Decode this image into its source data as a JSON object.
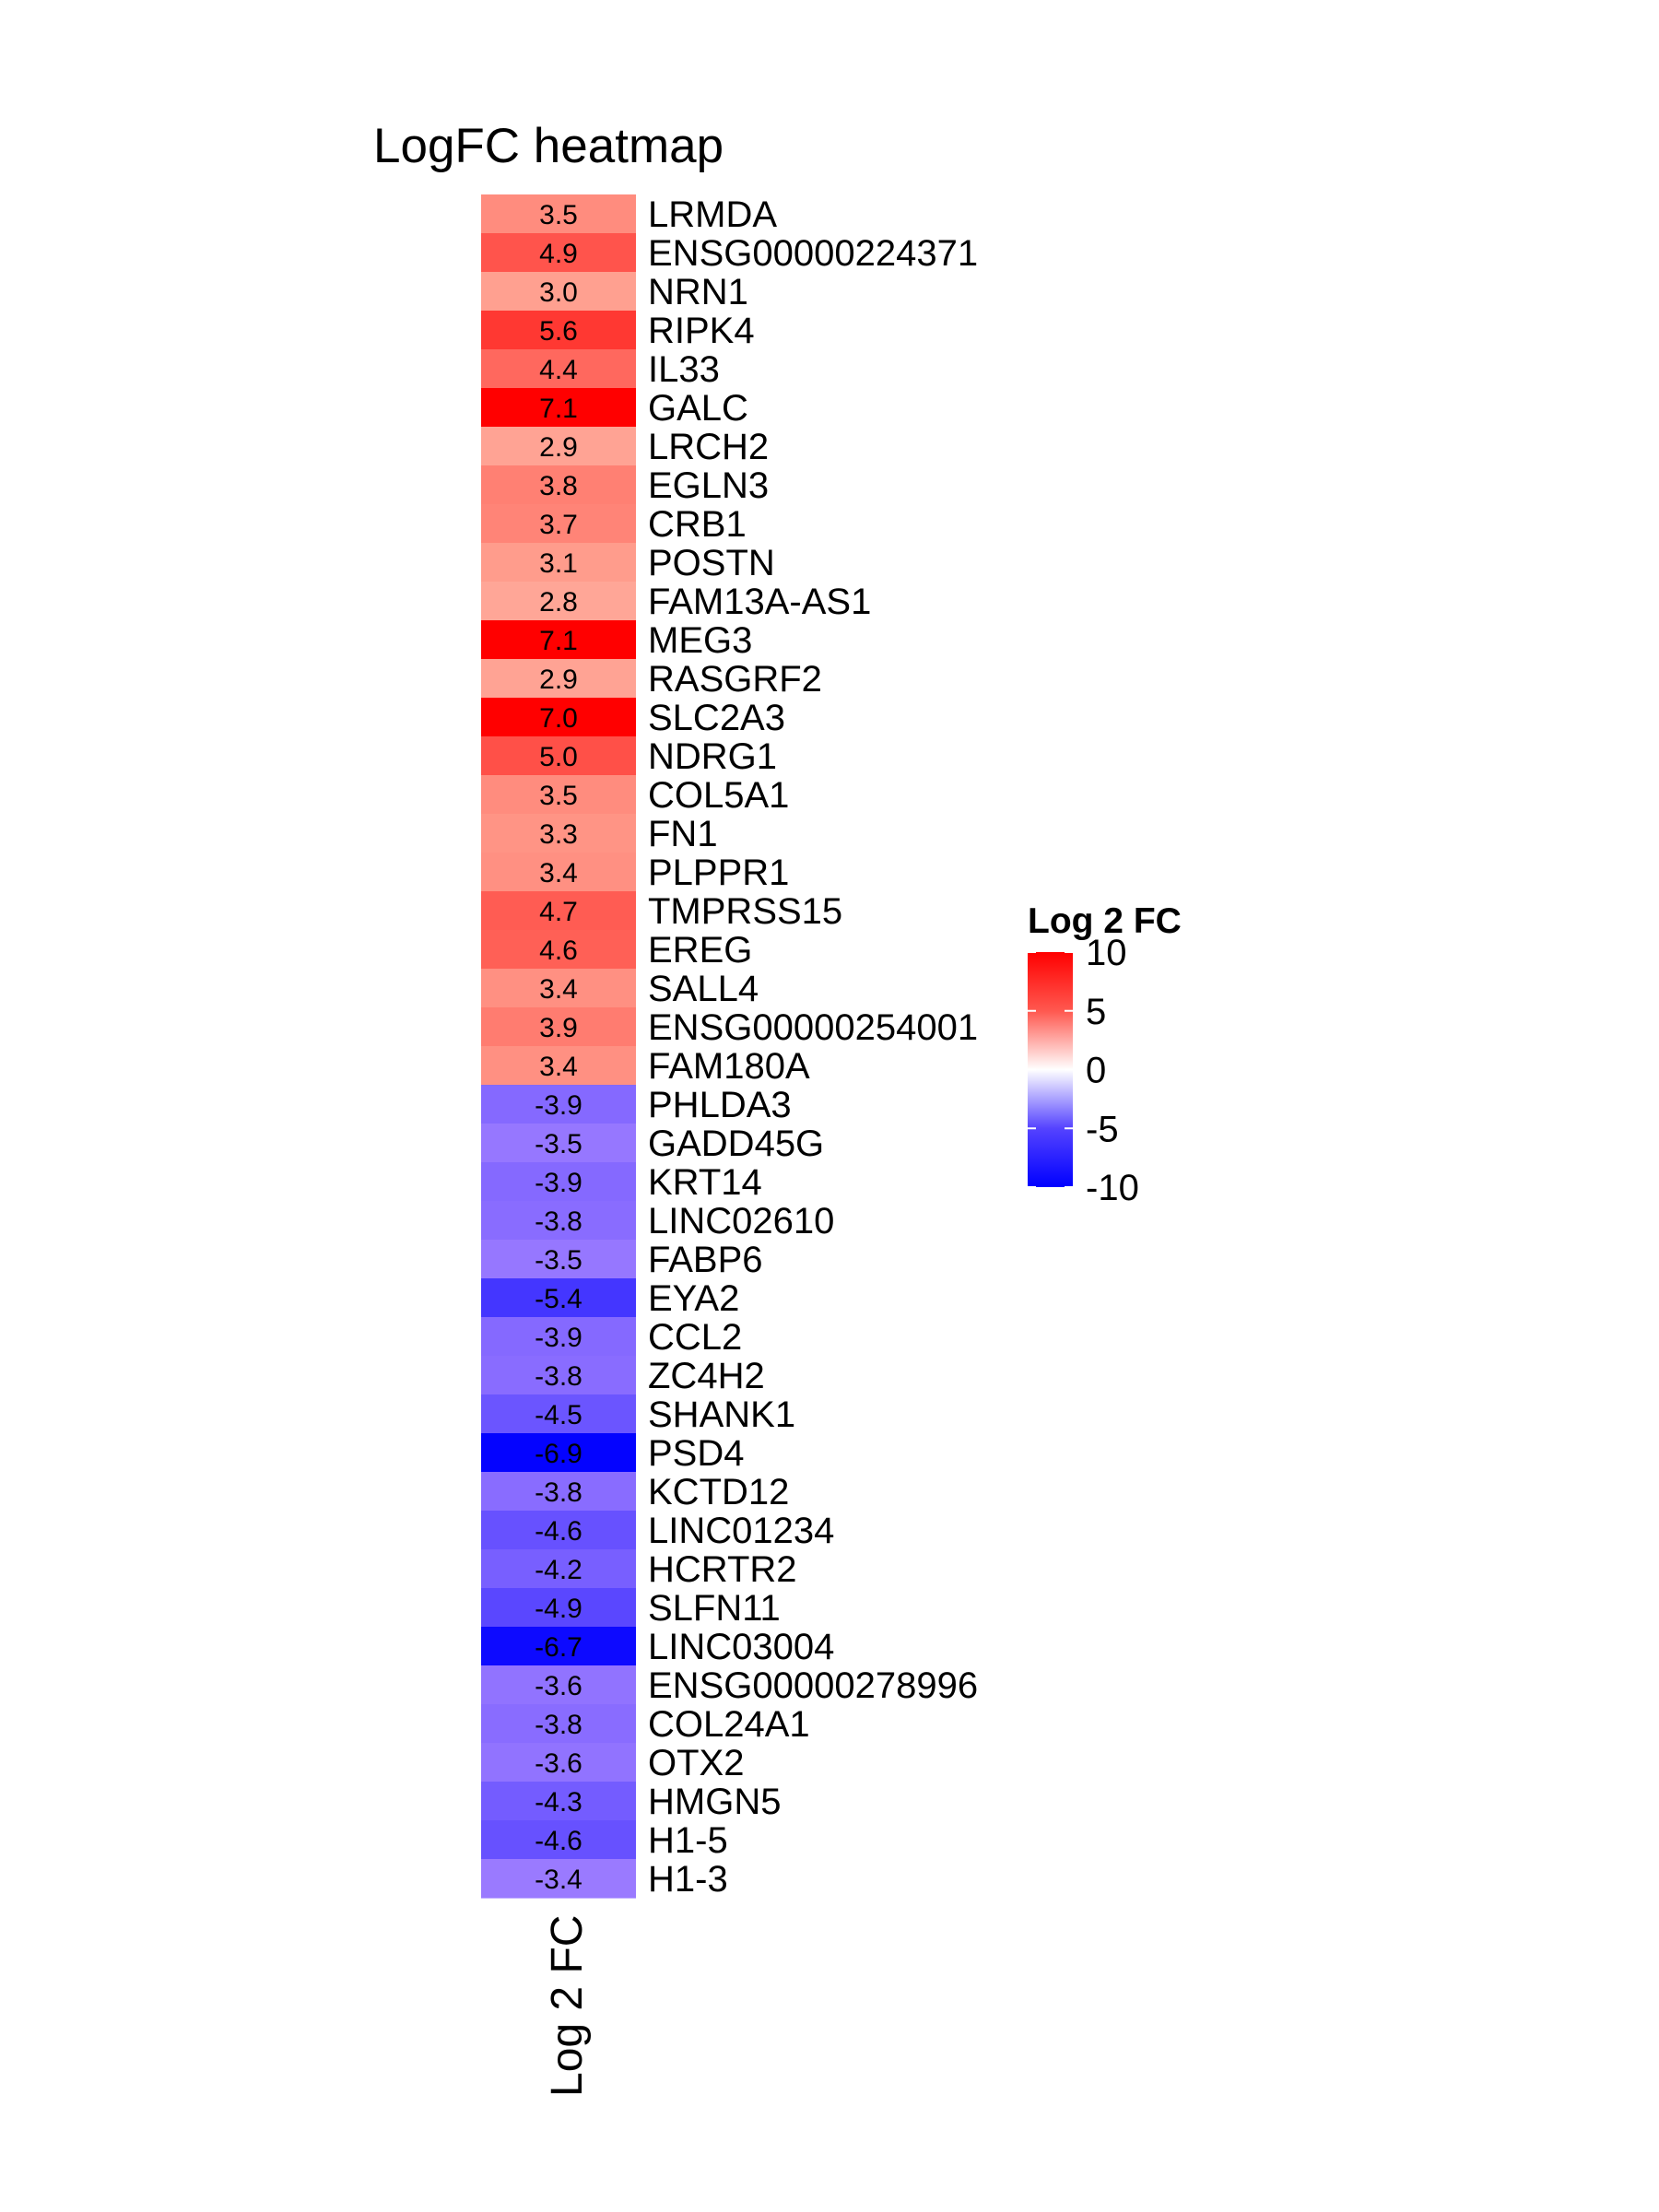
{
  "chart_data": {
    "type": "heatmap",
    "title": "LogFC heatmap",
    "column_label": "Log 2 FC",
    "rows": [
      "LRMDA",
      "ENSG00000224371",
      "NRN1",
      "RIPK4",
      "IL33",
      "GALC",
      "LRCH2",
      "EGLN3",
      "CRB1",
      "POSTN",
      "FAM13A-AS1",
      "MEG3",
      "RASGRF2",
      "SLC2A3",
      "NDRG1",
      "COL5A1",
      "FN1",
      "PLPPR1",
      "TMPRSS15",
      "EREG",
      "SALL4",
      "ENSG00000254001",
      "FAM180A",
      "PHLDA3",
      "GADD45G",
      "KRT14",
      "LINC02610",
      "FABP6",
      "EYA2",
      "CCL2",
      "ZC4H2",
      "SHANK1",
      "PSD4",
      "KCTD12",
      "LINC01234",
      "HCRTR2",
      "SLFN11",
      "LINC03004",
      "ENSG00000278996",
      "COL24A1",
      "OTX2",
      "HMGN5",
      "H1-5",
      "H1-3"
    ],
    "values": [
      3.5,
      4.9,
      3.0,
      5.6,
      4.4,
      7.1,
      2.9,
      3.8,
      3.7,
      3.1,
      2.8,
      7.1,
      2.9,
      7.0,
      5.0,
      3.5,
      3.3,
      3.4,
      4.7,
      4.6,
      3.4,
      3.9,
      3.4,
      -3.9,
      -3.5,
      -3.9,
      -3.8,
      -3.5,
      -5.4,
      -3.9,
      -3.8,
      -4.5,
      -6.9,
      -3.8,
      -4.6,
      -4.2,
      -4.9,
      -6.7,
      -3.6,
      -3.8,
      -3.6,
      -4.3,
      -4.6,
      -3.4
    ],
    "value_labels": [
      "3.5",
      "4.9",
      "3.0",
      "5.6",
      "4.4",
      "7.1",
      "2.9",
      "3.8",
      "3.7",
      "3.1",
      "2.8",
      "7.1",
      "2.9",
      "7.0",
      "5.0",
      "3.5",
      "3.3",
      "3.4",
      "4.7",
      "4.6",
      "3.4",
      "3.9",
      "3.4",
      "-3.9",
      "-3.5",
      "-3.9",
      "-3.8",
      "-3.5",
      "-5.4",
      "-3.9",
      "-3.8",
      "-4.5",
      "-6.9",
      "-3.8",
      "-4.6",
      "-4.2",
      "-4.9",
      "-6.7",
      "-3.6",
      "-3.8",
      "-3.6",
      "-4.3",
      "-4.6",
      "-3.4"
    ],
    "legend": {
      "title": "Log 2 FC",
      "placement": "right",
      "range": [
        -10,
        10
      ],
      "ticks": [
        10,
        5,
        0,
        -5,
        -10
      ],
      "tick_labels": [
        "10",
        "5",
        "0",
        "-5",
        "-10"
      ]
    },
    "colors": {
      "low": "#0000ff",
      "mid_low": "#9a7aff",
      "mid": "#ffffff",
      "mid_high": "#ffa090",
      "high": "#ff0000"
    }
  }
}
